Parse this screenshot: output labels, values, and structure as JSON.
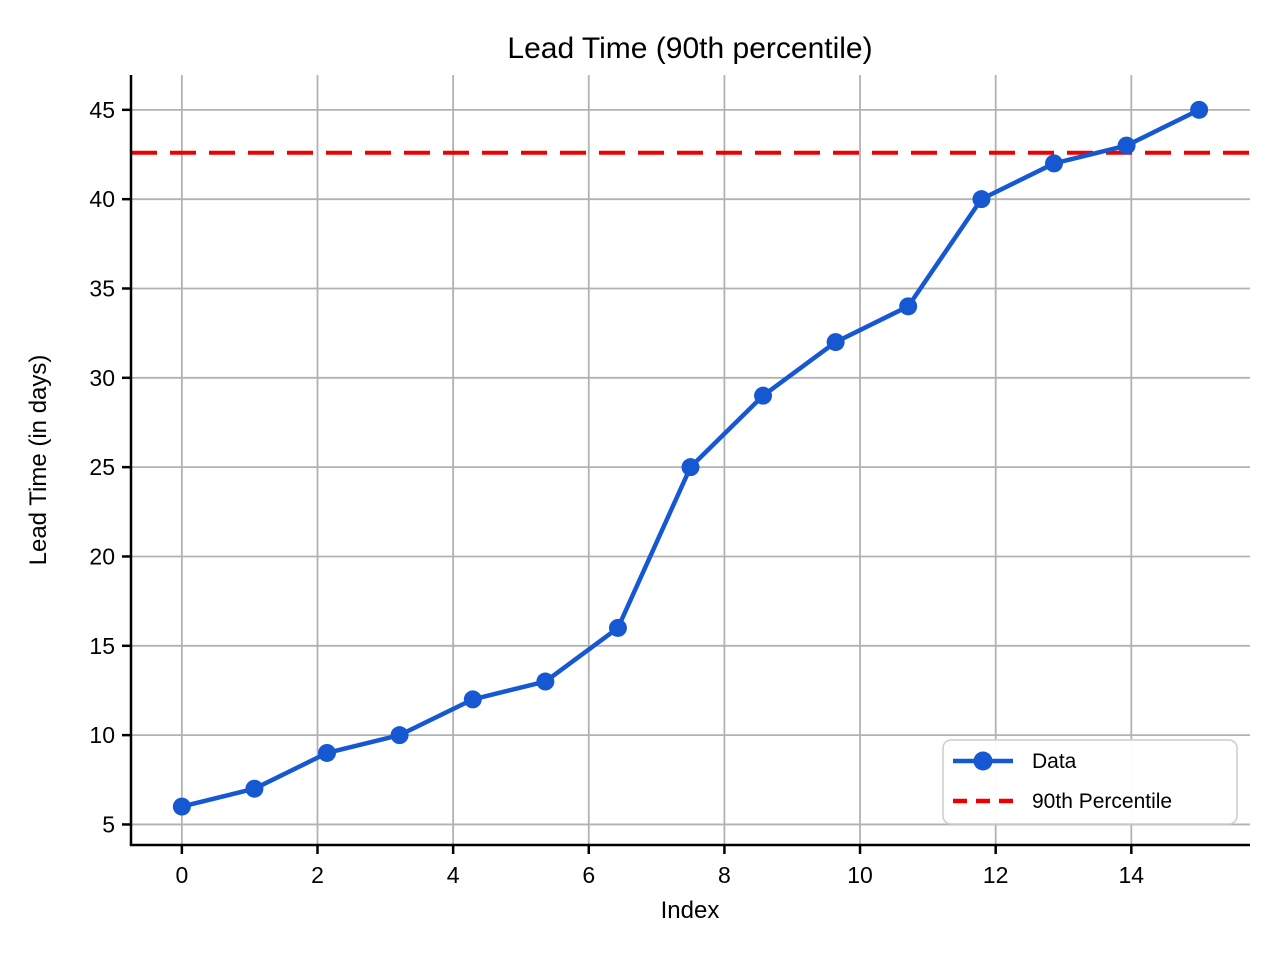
{
  "title": "Lead Time (90th percentile)",
  "colors": {
    "series_blue": "#1658d2",
    "percentile_red": "#ee0000",
    "grid_gray": "#b2b2b2",
    "spine_black": "#000000",
    "legend_border": "#cccccc",
    "background": "#ffffff"
  },
  "chart_data": {
    "type": "line",
    "title": "Lead Time (90th percentile)",
    "xlabel": "Index",
    "ylabel": "Lead Time (in days)",
    "grid": true,
    "xlim": [
      -0.75,
      15.75
    ],
    "ylim": [
      3.85,
      46.95
    ],
    "xticks": [
      0,
      2,
      4,
      6,
      8,
      10,
      12,
      14
    ],
    "yticks": [
      5,
      10,
      15,
      20,
      25,
      30,
      35,
      40,
      45
    ],
    "series": [
      {
        "name": "Data",
        "type": "line-markers",
        "color": "#1658d2",
        "x": [
          0,
          1.07,
          2.14,
          3.21,
          4.29,
          5.36,
          6.43,
          7.5,
          8.57,
          9.64,
          10.71,
          11.79,
          12.86,
          13.93,
          15
        ],
        "y": [
          6,
          7,
          9,
          10,
          12,
          13,
          16,
          25,
          29,
          32,
          34,
          40,
          42,
          43,
          45
        ]
      },
      {
        "name": "90th Percentile",
        "type": "hline-dashed",
        "color": "#ee0000",
        "value": 42.6
      }
    ],
    "legend": {
      "position": "lower right",
      "items": [
        {
          "label": "Data"
        },
        {
          "label": "90th Percentile"
        }
      ]
    }
  }
}
